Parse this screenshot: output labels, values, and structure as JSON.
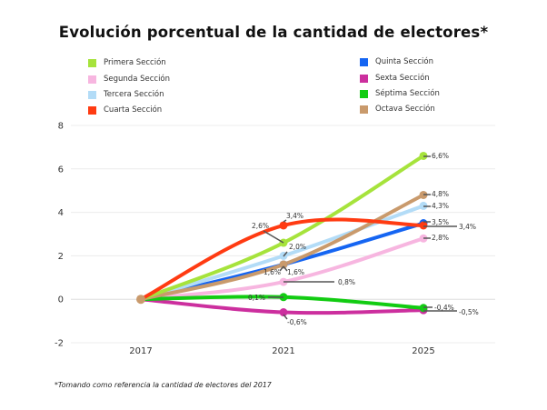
{
  "chart_data": {
    "type": "line",
    "title": "Evolución porcentual de la cantidad de electores*",
    "xlabel": "",
    "ylabel": "",
    "x": [
      "2017",
      "2021",
      "2025"
    ],
    "ylim": [
      -2,
      8
    ],
    "yticks": [
      "-2",
      "0",
      "2",
      "4",
      "6",
      "8"
    ],
    "ytick_values": [
      -2,
      0,
      2,
      4,
      6,
      8
    ],
    "grid": true,
    "legend_position": "top",
    "series": [
      {
        "name": "Primera Sección",
        "color": "#a6e33c",
        "values": [
          0,
          2.6,
          6.6
        ],
        "labels": [
          "",
          "2,6%",
          "6,6%"
        ]
      },
      {
        "name": "Segunda Sección",
        "color": "#f7b6e0",
        "values": [
          0,
          0.8,
          2.8
        ],
        "labels": [
          "",
          "0,8%",
          "2,8%"
        ]
      },
      {
        "name": "Tercera Sección",
        "color": "#b3dcf7",
        "values": [
          0,
          2.0,
          4.3
        ],
        "labels": [
          "",
          "2,0%",
          "4,3%"
        ]
      },
      {
        "name": "Cuarta Sección",
        "color": "#ff3b12",
        "values": [
          0,
          3.4,
          3.4
        ],
        "labels": [
          "",
          "3,4%",
          "3,4%"
        ]
      },
      {
        "name": "Quinta Sección",
        "color": "#1565f2",
        "values": [
          0,
          1.6,
          3.5
        ],
        "labels": [
          "",
          "1,6%",
          "3,5%"
        ]
      },
      {
        "name": "Sexta Sección",
        "color": "#cc2f9e",
        "values": [
          0,
          -0.6,
          -0.5
        ],
        "labels": [
          "",
          "-0,6%",
          "-0,5%"
        ]
      },
      {
        "name": "Séptima Sección",
        "color": "#12cc12",
        "values": [
          0,
          0.1,
          -0.4
        ],
        "labels": [
          "",
          "0,1%",
          "-0,4%"
        ]
      },
      {
        "name": "Octava Sección",
        "color": "#c99a6c",
        "values": [
          0,
          1.6,
          4.8
        ],
        "labels": [
          "",
          "1,6%",
          "4,8%"
        ]
      }
    ],
    "footnote": "*Tomando como referencia la cantidad de electores del 2017"
  },
  "legend": {
    "left": [
      "Primera Sección",
      "Segunda Sección",
      "Tercera Sección",
      "Cuarta Sección"
    ],
    "right": [
      "Quinta Sección",
      "Sexta Sección",
      "Séptima Sección",
      "Octava Sección"
    ]
  }
}
